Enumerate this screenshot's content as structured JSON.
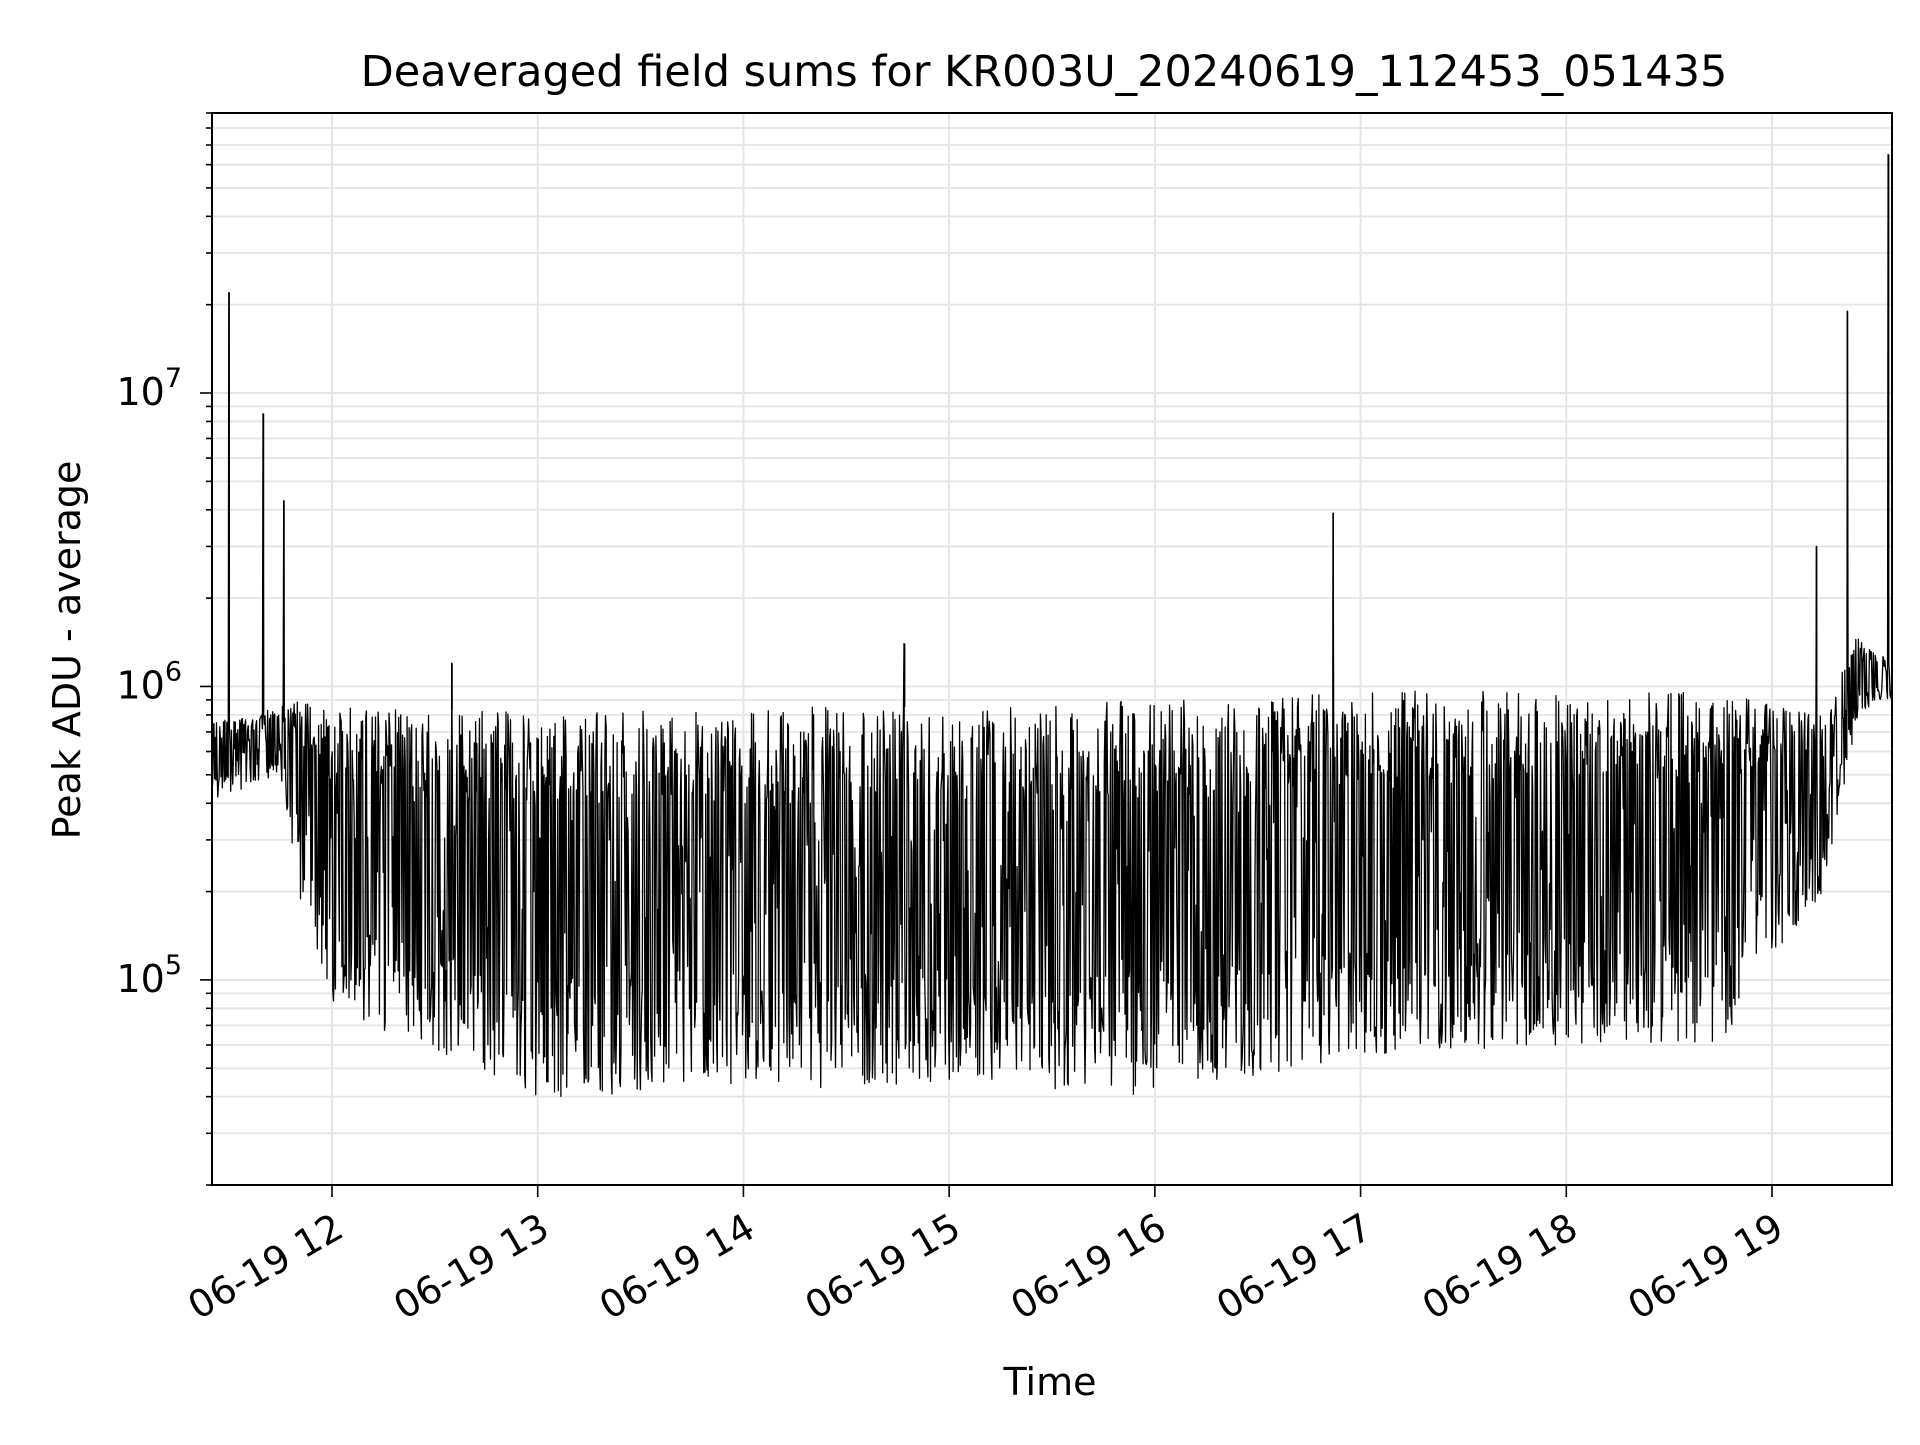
{
  "chart_data": {
    "type": "line",
    "title": "Deaveraged field sums for KR003U_20240619_112453_051435",
    "xlabel": "Time",
    "ylabel": "Peak ADU - average",
    "yscale": "log",
    "xlim": [
      "06-19 11:25",
      "06-19 19:35"
    ],
    "ylim": [
      20000,
      90000000
    ],
    "x_tick_labels": [
      "06-19 12",
      "06-19 13",
      "06-19 14",
      "06-19 15",
      "06-19 16",
      "06-19 17",
      "06-19 18",
      "06-19 19"
    ],
    "y_tick_labels": [
      {
        "base": "10",
        "exp": "5",
        "value": 100000
      },
      {
        "base": "10",
        "exp": "6",
        "value": 1000000
      },
      {
        "base": "10",
        "exp": "7",
        "value": 10000000
      }
    ],
    "grid": true,
    "legend": "none",
    "series": [
      {
        "color": "#000000",
        "band_envelope": {
          "x": [
            "06-19 11:25",
            "06-19 11:45",
            "06-19 11:50",
            "06-19 12:00",
            "06-19 13:00",
            "06-19 14:00",
            "06-19 15:00",
            "06-19 16:00",
            "06-19 17:00",
            "06-19 18:00",
            "06-19 18:45",
            "06-19 19:00",
            "06-19 19:15",
            "06-19 19:25",
            "06-19 19:35"
          ],
          "upper": [
            750000,
            850000,
            900000,
            850000,
            820000,
            850000,
            850000,
            900000,
            950000,
            1000000,
            950000,
            900000,
            800000,
            1500000,
            1200000
          ],
          "lower": [
            400000,
            500000,
            200000,
            80000,
            40000,
            40000,
            45000,
            40000,
            55000,
            60000,
            60000,
            120000,
            200000,
            800000,
            900000
          ]
        },
        "spikes": [
          {
            "x": "06-19 11:30",
            "y": 22000000
          },
          {
            "x": "06-19 11:40",
            "y": 8500000
          },
          {
            "x": "06-19 11:46",
            "y": 4300000
          },
          {
            "x": "06-19 12:35",
            "y": 1200000
          },
          {
            "x": "06-19 14:47",
            "y": 1400000
          },
          {
            "x": "06-19 16:52",
            "y": 3900000
          },
          {
            "x": "06-19 19:13",
            "y": 3000000
          },
          {
            "x": "06-19 19:22",
            "y": 19000000
          },
          {
            "x": "06-19 19:34",
            "y": 65000000
          }
        ]
      }
    ]
  }
}
